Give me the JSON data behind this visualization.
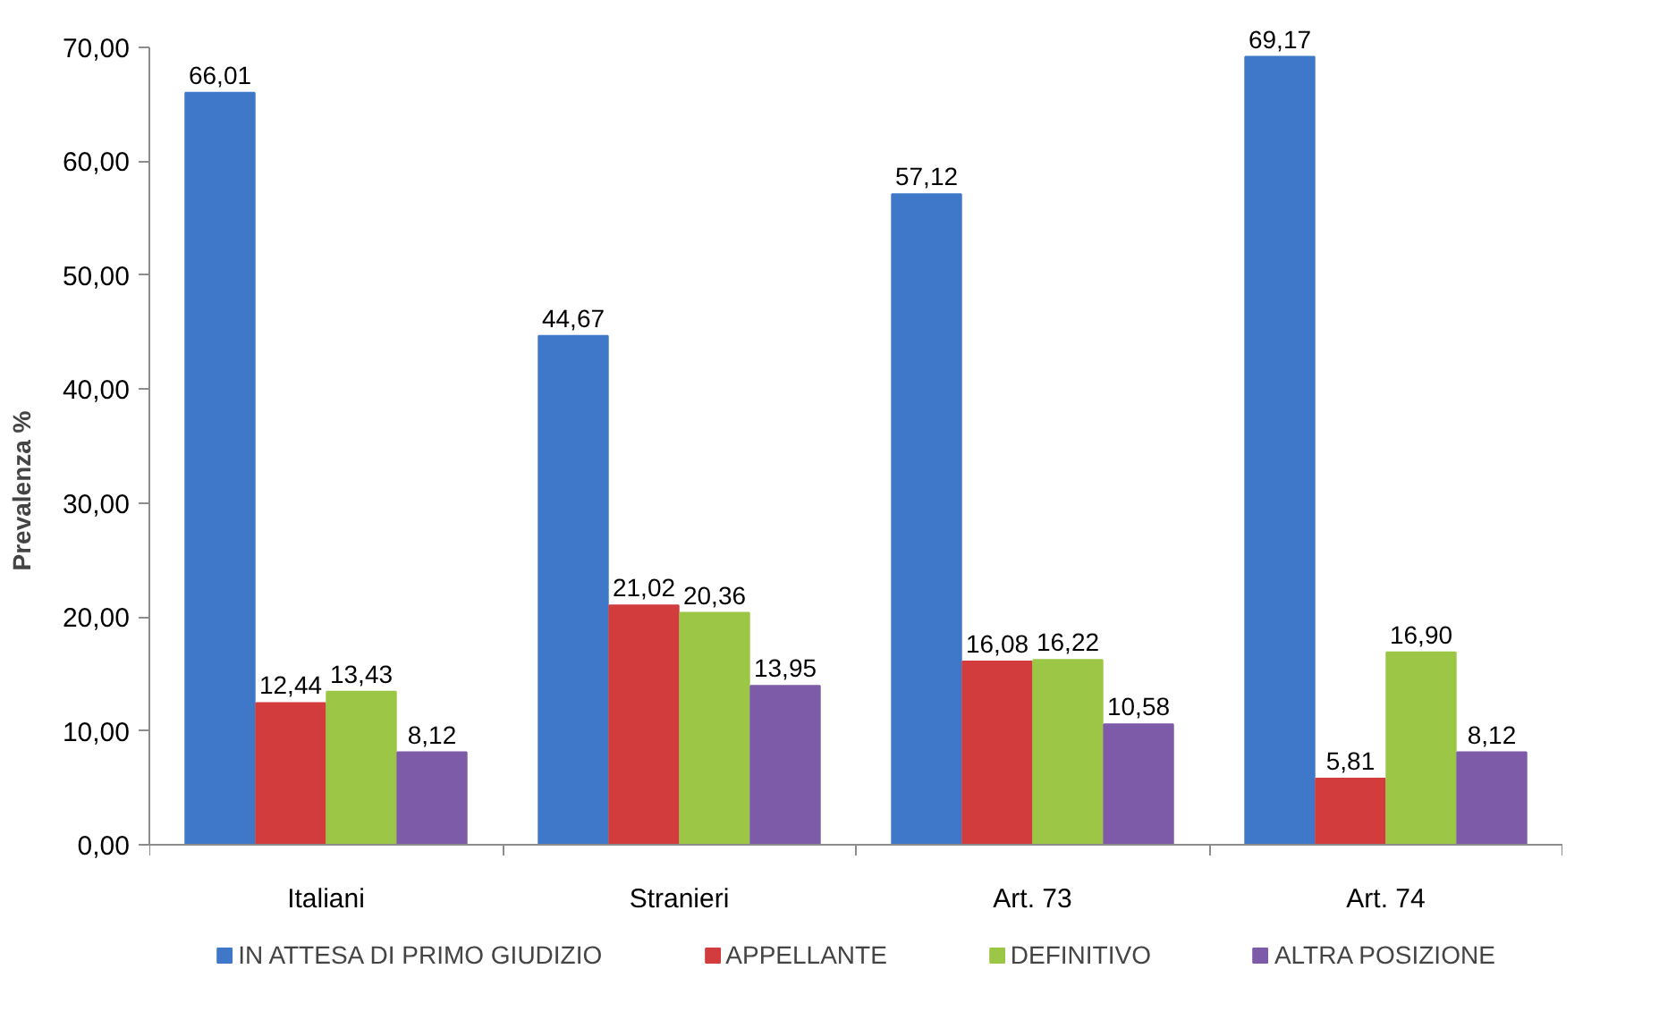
{
  "chart_data": {
    "type": "bar",
    "ylabel": "Prevalenza %",
    "categories": [
      "Italiani",
      "Stranieri",
      "Art. 73",
      "Art. 74"
    ],
    "series": [
      {
        "name": "IN ATTESA DI PRIMO GIUDIZIO",
        "color": "#3f78c8",
        "values": [
          66.01,
          44.67,
          57.12,
          69.17
        ],
        "value_labels": [
          "66,01",
          "44,67",
          "57,12",
          "69,17"
        ]
      },
      {
        "name": "APPELLANTE",
        "color": "#d23c3c",
        "values": [
          12.44,
          21.02,
          16.08,
          5.81
        ],
        "value_labels": [
          "12,44",
          "21,02",
          "16,08",
          "5,81"
        ]
      },
      {
        "name": "DEFINITIVO",
        "color": "#9cc646",
        "values": [
          13.43,
          20.36,
          16.22,
          16.9
        ],
        "value_labels": [
          "13,43",
          "20,36",
          "16,22",
          "16,90"
        ]
      },
      {
        "name": "ALTRA POSIZIONE",
        "color": "#7e5ba8",
        "values": [
          8.12,
          13.95,
          10.58,
          8.12
        ],
        "value_labels": [
          "8,12",
          "13,95",
          "10,58",
          "8,12"
        ]
      }
    ],
    "ylim": [
      0,
      70
    ],
    "yticks": [
      {
        "value": 0,
        "label": "0,00"
      },
      {
        "value": 10,
        "label": "10,00"
      },
      {
        "value": 20,
        "label": "20,00"
      },
      {
        "value": 30,
        "label": "30,00"
      },
      {
        "value": 40,
        "label": "40,00"
      },
      {
        "value": 50,
        "label": "50,00"
      },
      {
        "value": 60,
        "label": "60,00"
      },
      {
        "value": 70,
        "label": "70,00"
      }
    ],
    "grid": false,
    "legend": "bottom"
  }
}
